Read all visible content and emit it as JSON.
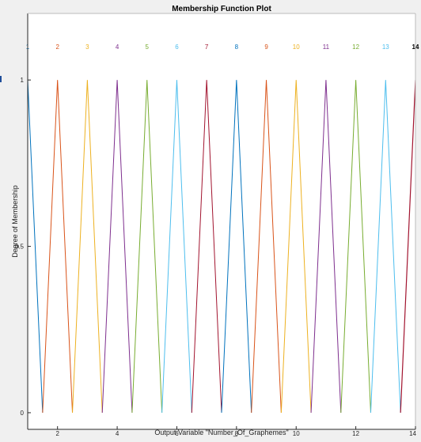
{
  "window": {
    "background": "#f0f0f0"
  },
  "chart_data": {
    "type": "line",
    "title": "Membership Function Plot",
    "xlabel": "Output Variable \"Number_Of_Graphemes\"",
    "ylabel": "Degree of Membership",
    "xlim": [
      1,
      14
    ],
    "ylim": [
      -0.05,
      1.2
    ],
    "x_ticks": [
      2,
      4,
      6,
      8,
      10,
      12,
      14
    ],
    "y_ticks": [
      0,
      0.5,
      1
    ],
    "y_tick_labels": [
      "0",
      "0.5",
      "1"
    ],
    "grid": false,
    "legend": "none",
    "series": [
      {
        "name": "1",
        "color": "#0072bd",
        "x": [
          0.5,
          1,
          1.5
        ],
        "y": [
          0,
          1,
          0
        ]
      },
      {
        "name": "2",
        "color": "#d95319",
        "x": [
          1.5,
          2,
          2.5
        ],
        "y": [
          0,
          1,
          0
        ]
      },
      {
        "name": "3",
        "color": "#edb120",
        "x": [
          2.5,
          3,
          3.5
        ],
        "y": [
          0,
          1,
          0
        ]
      },
      {
        "name": "4",
        "color": "#7e2f8e",
        "x": [
          3.5,
          4,
          4.5
        ],
        "y": [
          0,
          1,
          0
        ]
      },
      {
        "name": "5",
        "color": "#77ac30",
        "x": [
          4.5,
          5,
          5.5
        ],
        "y": [
          0,
          1,
          0
        ]
      },
      {
        "name": "6",
        "color": "#4dbeee",
        "x": [
          5.5,
          6,
          6.5
        ],
        "y": [
          0,
          1,
          0
        ]
      },
      {
        "name": "7",
        "color": "#a2142f",
        "x": [
          6.5,
          7,
          7.5
        ],
        "y": [
          0,
          1,
          0
        ]
      },
      {
        "name": "8",
        "color": "#0072bd",
        "x": [
          7.5,
          8,
          8.5
        ],
        "y": [
          0,
          1,
          0
        ]
      },
      {
        "name": "9",
        "color": "#d95319",
        "x": [
          8.5,
          9,
          9.5
        ],
        "y": [
          0,
          1,
          0
        ]
      },
      {
        "name": "10",
        "color": "#edb120",
        "x": [
          9.5,
          10,
          10.5
        ],
        "y": [
          0,
          1,
          0
        ]
      },
      {
        "name": "11",
        "color": "#7e2f8e",
        "x": [
          10.5,
          11,
          11.5
        ],
        "y": [
          0,
          1,
          0
        ]
      },
      {
        "name": "12",
        "color": "#77ac30",
        "x": [
          11.5,
          12,
          12.5
        ],
        "y": [
          0,
          1,
          0
        ]
      },
      {
        "name": "13",
        "color": "#4dbeee",
        "x": [
          12.5,
          13,
          13.5
        ],
        "y": [
          0,
          1,
          0
        ]
      },
      {
        "name": "14",
        "color": "#a2142f",
        "x": [
          13.5,
          14,
          14.5
        ],
        "y": [
          0,
          1,
          0
        ]
      }
    ],
    "label_y": 1.1,
    "highlighted_series": "14"
  }
}
